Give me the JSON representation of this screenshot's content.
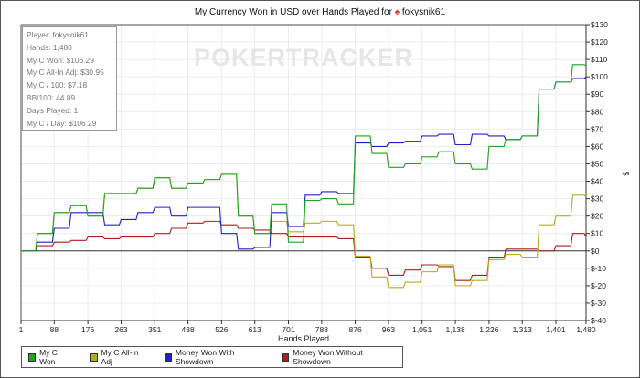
{
  "title": {
    "text_before": "My Currency Won in USD over Hands Played for",
    "player": "fokysnik61",
    "icon": "pokerstars-spade-icon"
  },
  "watermark": "POKERTRACKER",
  "stats": [
    "Player: fokysnik61",
    "Hands: 1,480",
    "My C Won: $106.29",
    "My C All-In Adj: $30.95",
    "My C / 100: $7.18",
    "BB/100: 44.89",
    "Days Played: 1",
    "My C / Day: $106.29"
  ],
  "chart_data": {
    "type": "line",
    "title": "My Currency Won in USD over Hands Played for fokysnik61",
    "xlabel": "Hands Played",
    "ylabel": "$",
    "xlim": [
      1,
      1480
    ],
    "ylim": [
      -40,
      130
    ],
    "grid": true,
    "legend_placement": "bottom-left",
    "x_ticks": [
      "1",
      "88",
      "176",
      "263",
      "351",
      "438",
      "526",
      "613",
      "701",
      "788",
      "876",
      "963",
      "1,051",
      "1,138",
      "1,226",
      "1,313",
      "1,401",
      "1,480"
    ],
    "x_tick_values": [
      1,
      88,
      176,
      263,
      351,
      438,
      526,
      613,
      701,
      788,
      876,
      963,
      1051,
      1138,
      1226,
      1313,
      1401,
      1480
    ],
    "y_ticks": [
      "$130",
      "$120",
      "$110",
      "$100",
      "$90",
      "$80",
      "$70",
      "$60",
      "$50",
      "$40",
      "$30",
      "$20",
      "$10",
      "$0",
      "$-10",
      "$-20",
      "$-30",
      "$-40"
    ],
    "y_tick_values": [
      130,
      120,
      110,
      100,
      90,
      80,
      70,
      60,
      50,
      40,
      30,
      20,
      10,
      0,
      -10,
      -20,
      -30,
      -40
    ],
    "x": [
      1,
      44,
      88,
      132,
      176,
      220,
      263,
      307,
      351,
      395,
      438,
      482,
      526,
      570,
      613,
      657,
      701,
      745,
      788,
      832,
      876,
      920,
      963,
      1007,
      1051,
      1095,
      1138,
      1182,
      1226,
      1270,
      1313,
      1357,
      1401,
      1445,
      1480
    ],
    "series": [
      {
        "name": "My C Won",
        "color": "#1ea51e",
        "values": [
          0,
          10,
          22,
          26,
          20,
          33,
          33,
          36,
          42,
          36,
          39,
          41,
          44,
          20,
          10,
          27,
          5,
          29,
          30,
          27,
          66,
          56,
          48,
          50,
          54,
          57,
          50,
          47,
          60,
          64,
          66,
          93,
          97,
          107,
          106.29
        ]
      },
      {
        "name": "My C All-In Adj",
        "color": "#b5ad1c",
        "values": [
          0,
          10,
          22,
          26,
          20,
          33,
          33,
          36,
          42,
          36,
          39,
          41,
          44,
          20,
          10,
          17,
          11,
          16,
          17,
          15,
          -3,
          -15,
          -21,
          -18,
          -12,
          -8,
          -20,
          -17,
          -5,
          -2,
          -4,
          15,
          20,
          32,
          30.95
        ]
      },
      {
        "name": "Money Won With Showdown",
        "color": "#2020c8",
        "values": [
          0,
          5,
          13,
          22,
          22,
          15,
          18,
          22,
          25,
          20,
          25,
          25,
          10,
          1,
          2,
          22,
          14,
          32,
          34,
          33,
          62,
          60,
          62,
          63,
          66,
          67,
          61,
          67,
          66,
          64,
          66,
          93,
          97,
          99,
          100
        ]
      },
      {
        "name": "Money Won Without Showdown",
        "color": "#b01c1c",
        "values": [
          0,
          3,
          5,
          6,
          8,
          7,
          8,
          8,
          10,
          13,
          16,
          17,
          15,
          13,
          12,
          10,
          8,
          8,
          8,
          7,
          -4,
          -10,
          -14,
          -11,
          -8,
          -9,
          -17,
          -14,
          -4,
          1,
          1,
          0,
          3,
          10,
          8
        ]
      }
    ]
  }
}
